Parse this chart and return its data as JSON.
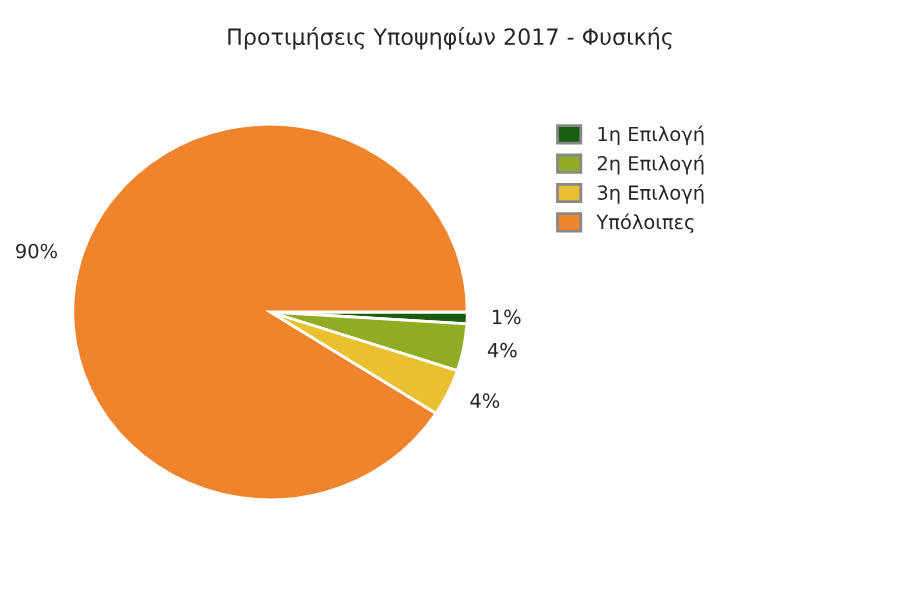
{
  "chart_data": {
    "type": "pie",
    "title": "Προτιμήσεις Υποψηφίων 2017 - Φυσικής",
    "categories": [
      "1η Επιλογή",
      "2η Επιλογή",
      "3η Επιλογή",
      "Υπόλοιπες"
    ],
    "values": [
      1,
      4,
      4,
      90
    ],
    "colors": [
      "#1a5c12",
      "#8fac24",
      "#e8c030",
      "#f0842c"
    ],
    "value_labels": [
      "1%",
      "4%",
      "4%",
      "90%"
    ],
    "legend": "right"
  }
}
